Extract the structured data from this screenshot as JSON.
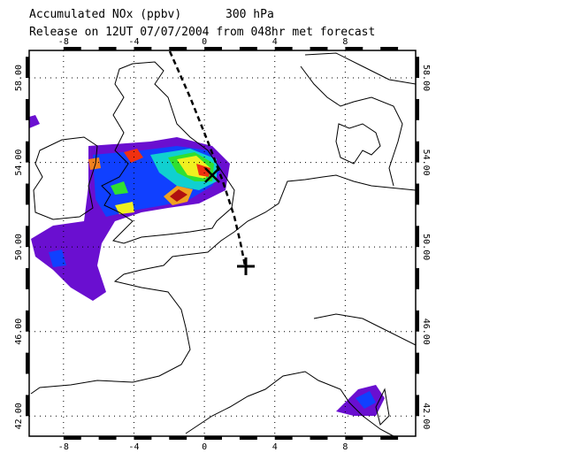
{
  "header": {
    "title": "Accumulated NOx  (ppbv)",
    "level": "300 hPa",
    "release": "Release on 12UT 07/07/2004 from 048hr met forecast"
  },
  "map": {
    "lonlim": [
      -9.95,
      12
    ],
    "latlim": [
      41.05,
      59.3
    ],
    "lon_ticks": [
      -8,
      -4,
      0,
      4,
      8
    ],
    "lat_ticks": [
      {
        "value": 42,
        "label": "42.00"
      },
      {
        "value": 46,
        "label": "46.00"
      },
      {
        "value": 50,
        "label": "50.00"
      },
      {
        "value": 54,
        "label": "54.00"
      },
      {
        "value": 58,
        "label": "58.00"
      }
    ],
    "grid": true
  }
}
